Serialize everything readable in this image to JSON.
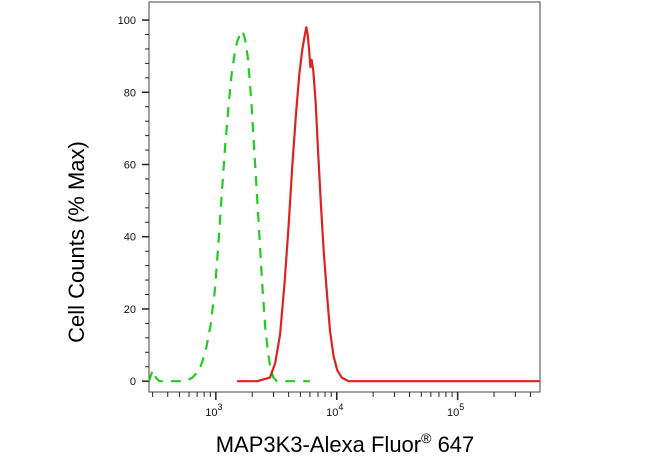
{
  "chart_data": {
    "type": "line",
    "title": "",
    "xlabel": "MAP3K3-Alexa Fluor",
    "xlabel_superscript": "®",
    "xlabel_suffix": " 647",
    "ylabel": "Cell Counts (% Max)",
    "x_scale": "log",
    "xlim": [
      280,
      480000
    ],
    "ylim": [
      -3,
      105
    ],
    "y_ticks": [
      "0",
      "20",
      "40",
      "60",
      "80",
      "100"
    ],
    "x_ticks": [
      {
        "base": "10",
        "exp": "3"
      },
      {
        "base": "10",
        "exp": "4"
      },
      {
        "base": "10",
        "exp": "5"
      }
    ],
    "series": [
      {
        "color": "#22cc22",
        "style": "dashed",
        "x": [
          280,
          300,
          320,
          340,
          380,
          430,
          500,
          560,
          640,
          730,
          820,
          900,
          980,
          1050,
          1120,
          1200,
          1280,
          1350,
          1420,
          1500,
          1580,
          1640,
          1700,
          1760,
          1830,
          1900,
          1980,
          2060,
          2150,
          2250,
          2350,
          2450,
          2560,
          2700,
          2850,
          3000,
          3200,
          3500,
          4000,
          6000
        ],
        "y": [
          0,
          3,
          1,
          0,
          0,
          0,
          0,
          0,
          1,
          3,
          8,
          15,
          25,
          38,
          52,
          66,
          77,
          85,
          90,
          94,
          96,
          97,
          96,
          94,
          90,
          84,
          76,
          66,
          56,
          45,
          34,
          24,
          15,
          8,
          3,
          1,
          0,
          0,
          0,
          0
        ]
      },
      {
        "color": "#dd2222",
        "style": "solid",
        "x": [
          1500,
          2200,
          2800,
          3100,
          3400,
          3700,
          4000,
          4300,
          4600,
          4900,
          5200,
          5450,
          5600,
          5750,
          5900,
          6050,
          6200,
          6400,
          6700,
          7000,
          7400,
          7800,
          8300,
          8800,
          9400,
          10100,
          11000,
          12500,
          15000,
          30000,
          100000,
          480000
        ],
        "y": [
          0,
          0,
          1,
          5,
          13,
          27,
          43,
          60,
          74,
          85,
          92,
          96,
          98,
          96,
          92,
          87,
          89,
          86,
          77,
          64,
          49,
          36,
          24,
          14,
          7,
          3,
          1,
          0,
          0,
          0,
          0,
          0
        ]
      }
    ]
  }
}
